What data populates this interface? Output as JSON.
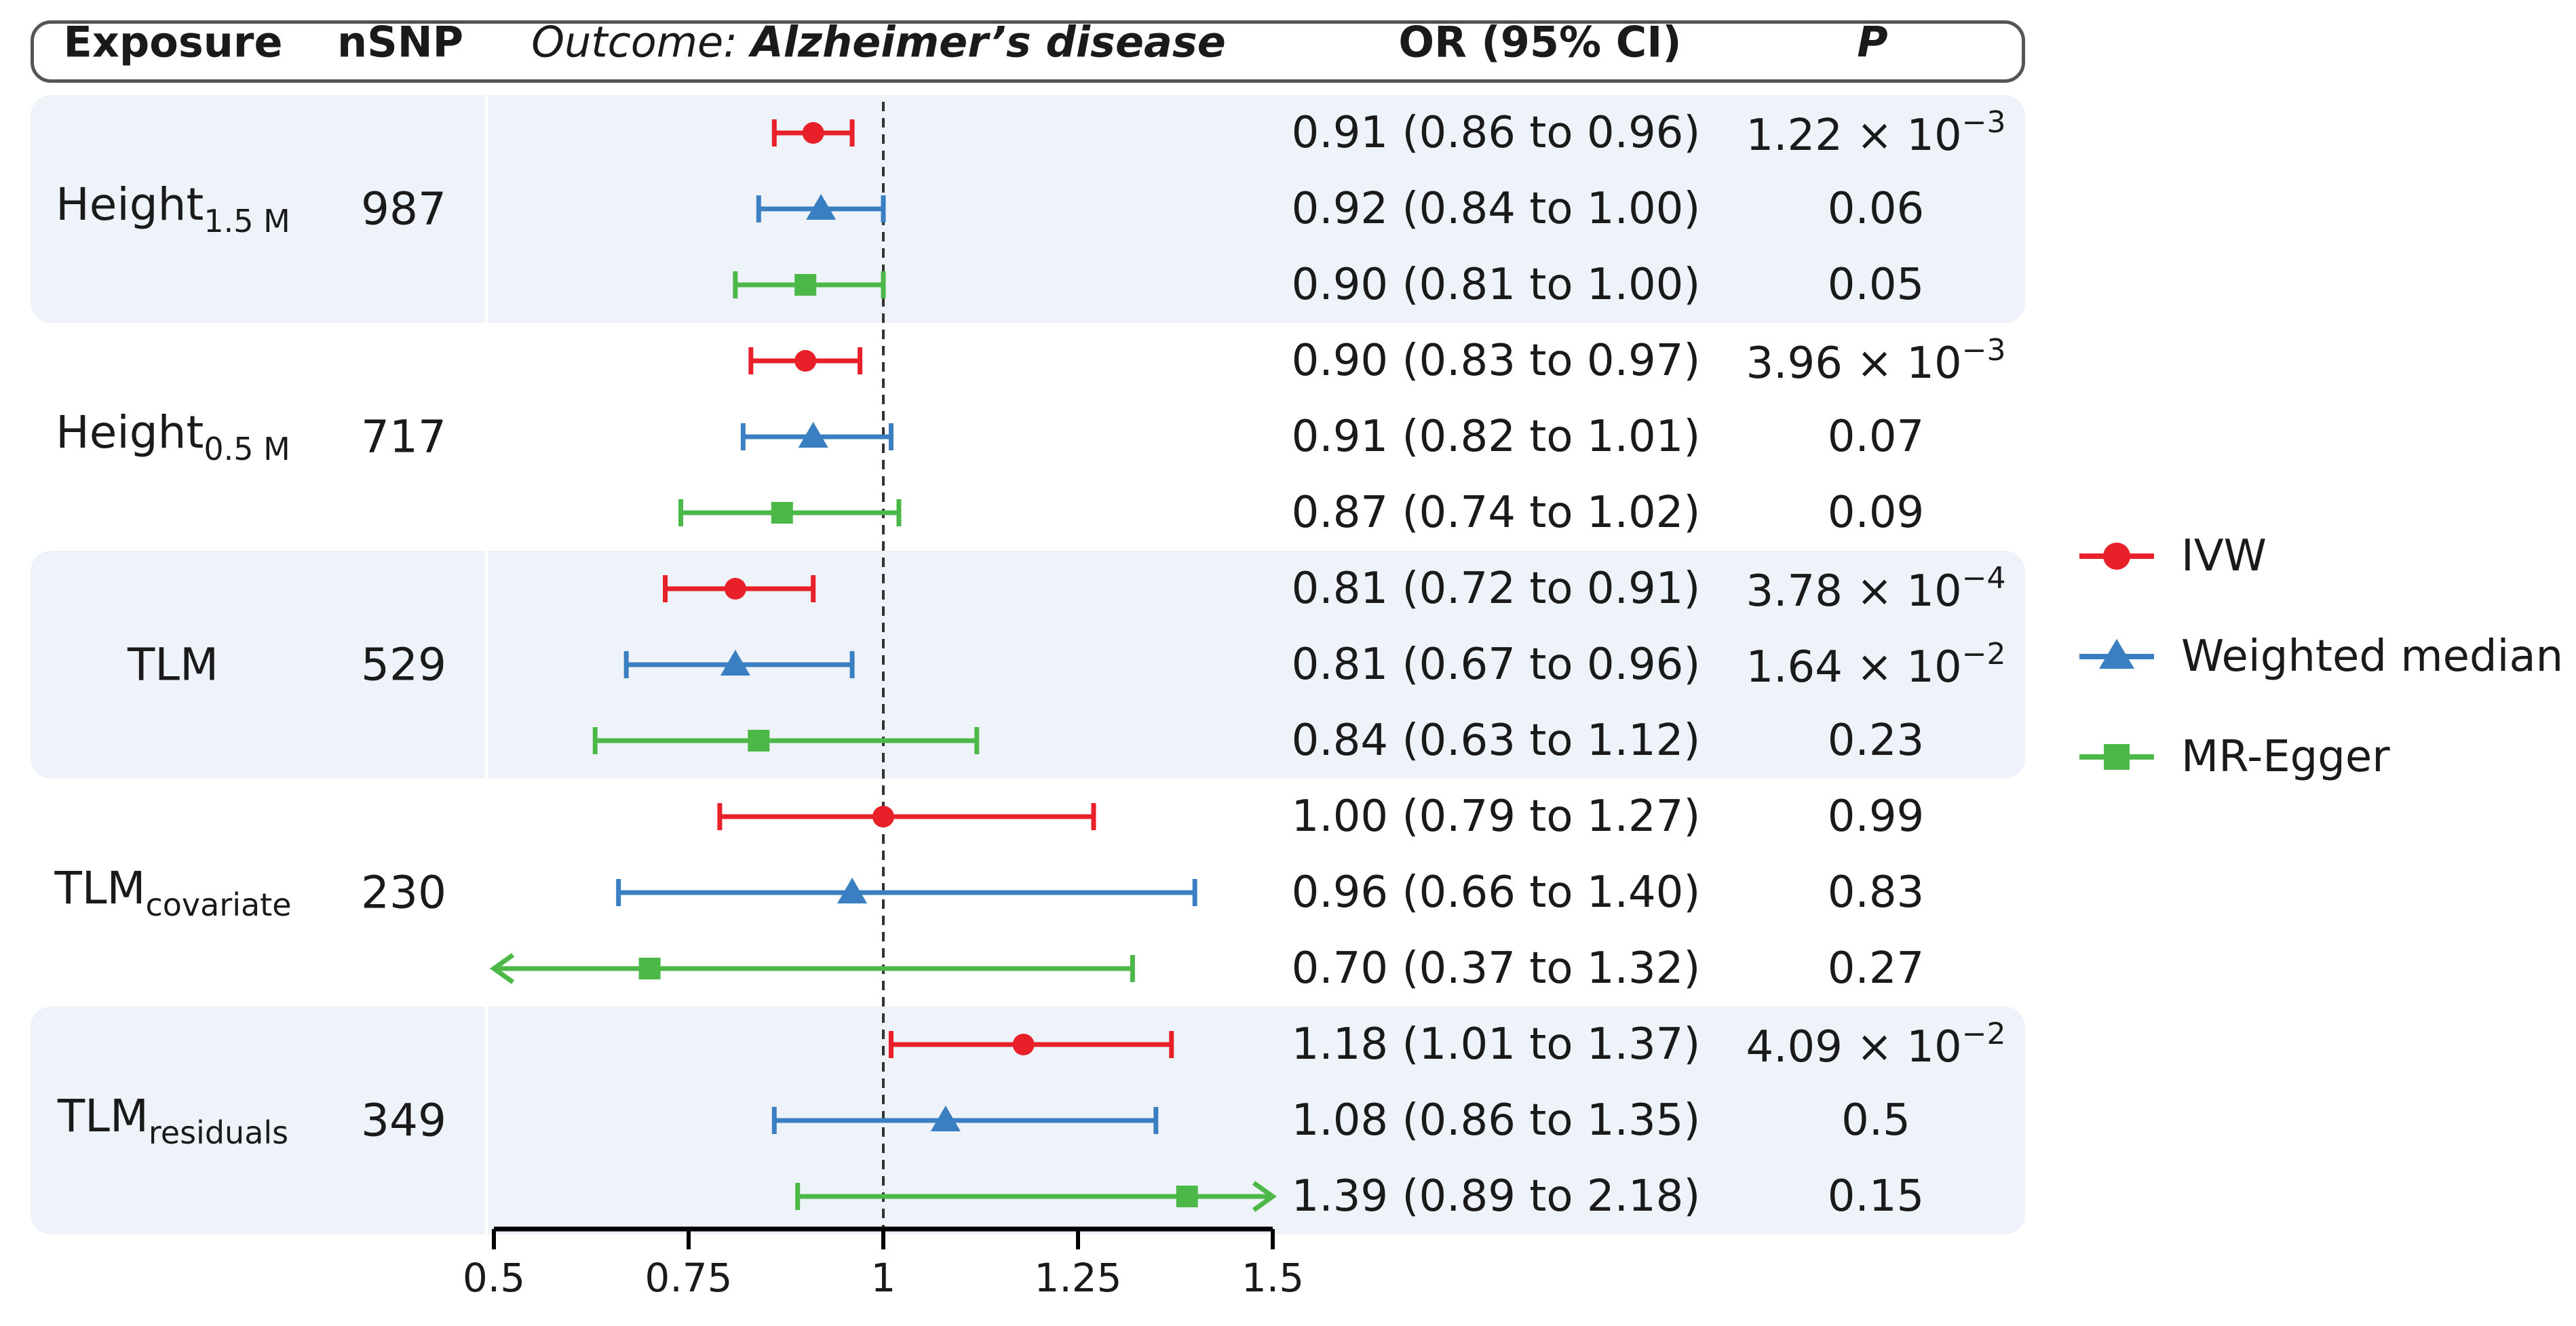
{
  "header": {
    "exposure": "Exposure",
    "nsnp": "nSNP",
    "outcome_prefix": "Outcome: ",
    "outcome_name": "Alzheimer’s disease",
    "or": "OR (95% CI)",
    "p": "P"
  },
  "colors": {
    "ivw": "#e8202a",
    "weighted_median": "#3a7fc1",
    "mr_egger": "#4cb848",
    "band": "#eef2f9",
    "ref_line": "#333333"
  },
  "groups": [
    {
      "exposure": "Height",
      "exposure_sub": "1.5 M",
      "nsnp": "987"
    },
    {
      "exposure": "Height",
      "exposure_sub": "0.5 M",
      "nsnp": "717"
    },
    {
      "exposure": "TLM",
      "exposure_sub": "",
      "nsnp": "529"
    },
    {
      "exposure": "TLM",
      "exposure_sub": "covariate",
      "nsnp": "230"
    },
    {
      "exposure": "TLM",
      "exposure_sub": "residuals",
      "nsnp": "349"
    }
  ],
  "rows": [
    {
      "or_text": "0.91 (0.86 to 0.96)",
      "p_main": "1.22 × 10",
      "p_exp": "−3"
    },
    {
      "or_text": "0.92 (0.84 to 1.00)",
      "p_main": "0.06",
      "p_exp": ""
    },
    {
      "or_text": "0.90 (0.81 to 1.00)",
      "p_main": "0.05",
      "p_exp": ""
    },
    {
      "or_text": "0.90 (0.83 to 0.97)",
      "p_main": "3.96 × 10",
      "p_exp": "−3"
    },
    {
      "or_text": "0.91 (0.82 to 1.01)",
      "p_main": "0.07",
      "p_exp": ""
    },
    {
      "or_text": "0.87 (0.74 to 1.02)",
      "p_main": "0.09",
      "p_exp": ""
    },
    {
      "or_text": "0.81 (0.72 to 0.91)",
      "p_main": "3.78 × 10",
      "p_exp": "−4"
    },
    {
      "or_text": "0.81 (0.67 to 0.96)",
      "p_main": "1.64 × 10",
      "p_exp": "−2"
    },
    {
      "or_text": "0.84 (0.63 to 1.12)",
      "p_main": "0.23",
      "p_exp": ""
    },
    {
      "or_text": "1.00 (0.79 to 1.27)",
      "p_main": "0.99",
      "p_exp": ""
    },
    {
      "or_text": "0.96 (0.66 to 1.40)",
      "p_main": "0.83",
      "p_exp": ""
    },
    {
      "or_text": "0.70 (0.37 to 1.32)",
      "p_main": "0.27",
      "p_exp": ""
    },
    {
      "or_text": "1.18 (1.01 to 1.37)",
      "p_main": "4.09 × 10",
      "p_exp": "−2"
    },
    {
      "or_text": "1.08 (0.86 to 1.35)",
      "p_main": "0.5",
      "p_exp": ""
    },
    {
      "or_text": "1.39 (0.89 to 2.18)",
      "p_main": "0.15",
      "p_exp": ""
    }
  ],
  "legend": [
    {
      "key": "ivw",
      "label": "IVW",
      "marker": "circle"
    },
    {
      "key": "weighted_median",
      "label": "Weighted median",
      "marker": "triangle"
    },
    {
      "key": "mr_egger",
      "label": "MR-Egger",
      "marker": "square"
    }
  ],
  "chart_data": {
    "type": "scatter",
    "subtype": "forest-plot",
    "xlim": [
      0.5,
      1.5
    ],
    "ticks": [
      0.5,
      0.75,
      1,
      1.25,
      1.5
    ],
    "tick_labels": [
      "0.5",
      "0.75",
      "1",
      "1.25",
      "1.5"
    ],
    "reference_line": 1,
    "series": [
      {
        "name": "IVW",
        "marker": "circle",
        "points": [
          {
            "group": 0,
            "or": 0.91,
            "lo": 0.86,
            "hi": 0.96
          },
          {
            "group": 1,
            "or": 0.9,
            "lo": 0.83,
            "hi": 0.97
          },
          {
            "group": 2,
            "or": 0.81,
            "lo": 0.72,
            "hi": 0.91
          },
          {
            "group": 3,
            "or": 1.0,
            "lo": 0.79,
            "hi": 1.27
          },
          {
            "group": 4,
            "or": 1.18,
            "lo": 1.01,
            "hi": 1.37
          }
        ]
      },
      {
        "name": "Weighted median",
        "marker": "triangle",
        "points": [
          {
            "group": 0,
            "or": 0.92,
            "lo": 0.84,
            "hi": 1.0
          },
          {
            "group": 1,
            "or": 0.91,
            "lo": 0.82,
            "hi": 1.01
          },
          {
            "group": 2,
            "or": 0.81,
            "lo": 0.67,
            "hi": 0.96
          },
          {
            "group": 3,
            "or": 0.96,
            "lo": 0.66,
            "hi": 1.4
          },
          {
            "group": 4,
            "or": 1.08,
            "lo": 0.86,
            "hi": 1.35
          }
        ]
      },
      {
        "name": "MR-Egger",
        "marker": "square",
        "points": [
          {
            "group": 0,
            "or": 0.9,
            "lo": 0.81,
            "hi": 1.0
          },
          {
            "group": 1,
            "or": 0.87,
            "lo": 0.74,
            "hi": 1.02
          },
          {
            "group": 2,
            "or": 0.84,
            "lo": 0.63,
            "hi": 1.12
          },
          {
            "group": 3,
            "or": 0.7,
            "lo": 0.37,
            "hi": 1.32
          },
          {
            "group": 4,
            "or": 1.39,
            "lo": 0.89,
            "hi": 2.18
          }
        ]
      }
    ]
  }
}
